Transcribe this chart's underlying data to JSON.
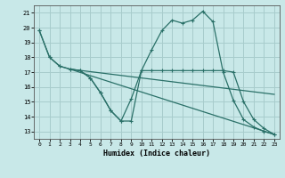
{
  "xlabel": "Humidex (Indice chaleur)",
  "bg_color": "#c8e8e8",
  "grid_color": "#a8cccc",
  "line_color": "#2a7068",
  "xlim": [
    -0.5,
    23.5
  ],
  "ylim": [
    12.5,
    21.5
  ],
  "xticks": [
    0,
    1,
    2,
    3,
    4,
    5,
    6,
    7,
    8,
    9,
    10,
    11,
    12,
    13,
    14,
    15,
    16,
    17,
    18,
    19,
    20,
    21,
    22,
    23
  ],
  "yticks": [
    13,
    14,
    15,
    16,
    17,
    18,
    19,
    20,
    21
  ],
  "series": [
    {
      "x": [
        0,
        1,
        2,
        3,
        4,
        5,
        6,
        7,
        8,
        9,
        10,
        11,
        12,
        13,
        14,
        15,
        16,
        17,
        18,
        19,
        20,
        21,
        22,
        23
      ],
      "y": [
        19.8,
        18.0,
        17.4,
        17.2,
        17.1,
        16.6,
        15.6,
        14.4,
        13.7,
        13.7,
        17.1,
        17.1,
        17.1,
        17.1,
        17.1,
        17.1,
        17.1,
        17.1,
        17.1,
        17.0,
        15.0,
        13.8,
        13.2,
        12.8
      ],
      "marker": true
    },
    {
      "x": [
        0,
        1,
        2,
        3,
        4,
        5,
        6,
        7,
        8,
        9,
        10,
        11,
        12,
        13,
        14,
        15,
        16,
        17,
        18,
        19,
        20,
        21,
        22,
        23
      ],
      "y": [
        19.8,
        18.0,
        17.4,
        17.2,
        17.1,
        16.6,
        15.6,
        14.4,
        13.7,
        15.2,
        17.1,
        18.5,
        19.8,
        20.5,
        20.3,
        20.5,
        21.1,
        20.4,
        17.0,
        15.1,
        13.8,
        13.3,
        13.0,
        12.8
      ],
      "marker": true
    },
    {
      "x": [
        3,
        23
      ],
      "y": [
        17.2,
        12.8
      ],
      "marker": false
    },
    {
      "x": [
        3,
        23
      ],
      "y": [
        17.2,
        15.5
      ],
      "marker": false
    }
  ]
}
